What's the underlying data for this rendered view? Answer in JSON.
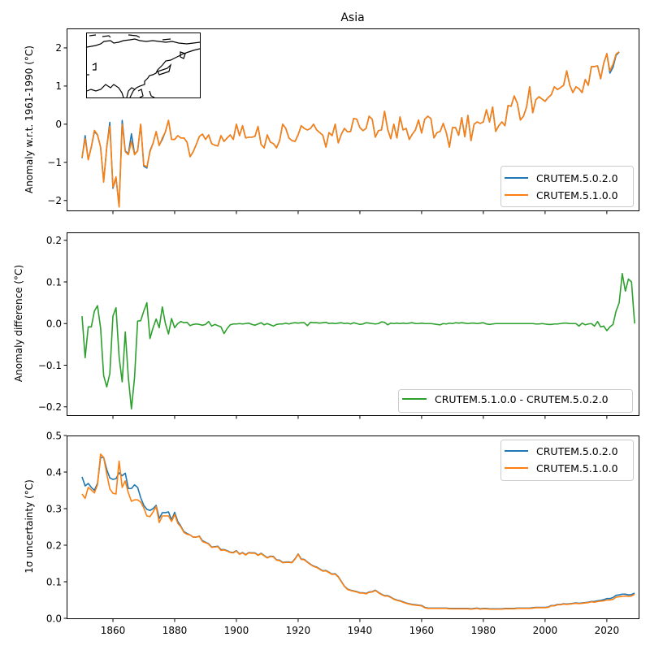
{
  "chart_data": [
    {
      "type": "line",
      "title": "Asia",
      "xlabel": "",
      "ylabel": "Anomaly w.r.t. 1961-1990 (°C)",
      "xlim": [
        1845,
        2030.3
      ],
      "ylim": [
        -2.26,
        2.51
      ],
      "xticks": [
        1860,
        1880,
        1900,
        1920,
        1940,
        1960,
        1980,
        2000,
        2020
      ],
      "xtick_labels_visible": false,
      "yticks": [
        -2,
        -1,
        0,
        1,
        2
      ],
      "ytick_labels": [
        "−2",
        "−1",
        "0",
        "1",
        "2"
      ],
      "grid": false,
      "legend": "lower-right",
      "inset": "map of Asia coastlines (top-left)",
      "x_start": 1850,
      "series": [
        {
          "name": "CRUTEM.5.0.2.0",
          "color": "#1f77b4",
          "values": [
            -0.89,
            -0.3,
            -0.93,
            -0.6,
            -0.19,
            -0.28,
            -0.6,
            -1.5,
            -0.6,
            0.05,
            -1.68,
            -1.4,
            -2.15,
            0.1,
            -0.7,
            -0.78,
            -0.25,
            -0.78,
            -0.7,
            0.0,
            -1.1,
            -1.15,
            -0.7,
            -0.5,
            -0.2,
            -0.55,
            -0.4,
            -0.2,
            0.1,
            -0.4,
            -0.4,
            -0.3,
            -0.36,
            -0.36,
            -0.47,
            -0.85,
            -0.72,
            -0.53,
            -0.32,
            -0.26,
            -0.4,
            -0.28,
            -0.51,
            -0.55,
            -0.57,
            -0.3,
            -0.45,
            -0.36,
            -0.28,
            -0.4,
            0.0,
            -0.3,
            -0.04,
            -0.36,
            -0.34,
            -0.34,
            -0.32,
            -0.06,
            -0.53,
            -0.62,
            -0.28,
            -0.47,
            -0.51,
            -0.62,
            -0.43,
            0.0,
            -0.11,
            -0.36,
            -0.43,
            -0.45,
            -0.28,
            -0.04,
            -0.11,
            -0.15,
            -0.11,
            0.0,
            -0.15,
            -0.22,
            -0.29,
            -0.6,
            -0.22,
            -0.3,
            0.0,
            -0.49,
            -0.26,
            -0.11,
            -0.2,
            -0.19,
            0.15,
            0.13,
            -0.09,
            -0.17,
            -0.11,
            0.21,
            0.13,
            -0.34,
            -0.17,
            -0.15,
            0.34,
            -0.13,
            -0.38,
            0.0,
            -0.36,
            0.19,
            -0.15,
            -0.11,
            -0.4,
            -0.26,
            -0.15,
            0.11,
            -0.23,
            0.13,
            0.21,
            0.15,
            -0.36,
            -0.22,
            -0.19,
            0.02,
            -0.22,
            -0.6,
            -0.09,
            -0.09,
            -0.29,
            0.17,
            -0.33,
            0.23,
            -0.43,
            0.0,
            0.06,
            0.02,
            0.06,
            0.38,
            0.06,
            0.45,
            -0.19,
            -0.04,
            0.06,
            -0.04,
            0.49,
            0.47,
            0.74,
            0.55,
            0.11,
            0.21,
            0.45,
            0.98,
            0.3,
            0.64,
            0.72,
            0.66,
            0.6,
            0.7,
            0.77,
            0.98,
            0.91,
            0.96,
            1.02,
            1.4,
            1.02,
            0.83,
            0.98,
            0.93,
            0.83,
            1.17,
            1.02,
            1.51,
            1.51,
            1.53,
            1.19,
            1.6,
            1.85,
            1.34,
            1.49,
            1.81,
            1.89
          ]
        },
        {
          "name": "CRUTEM.5.1.0.0",
          "color": "#ff7f0e",
          "values": [
            -0.87,
            -0.38,
            -0.93,
            -0.59,
            -0.16,
            -0.27,
            -0.6,
            -1.52,
            -0.6,
            -0.05,
            -1.65,
            -1.38,
            -2.17,
            0.0,
            -0.72,
            -0.8,
            -0.45,
            -0.8,
            -0.7,
            0.0,
            -1.07,
            -1.12,
            -0.73,
            -0.5,
            -0.19,
            -0.56,
            -0.36,
            -0.2,
            0.1,
            -0.4,
            -0.4,
            -0.3,
            -0.36,
            -0.36,
            -0.47,
            -0.85,
            -0.72,
            -0.53,
            -0.32,
            -0.26,
            -0.4,
            -0.28,
            -0.51,
            -0.55,
            -0.57,
            -0.3,
            -0.45,
            -0.36,
            -0.28,
            -0.4,
            0.0,
            -0.3,
            -0.04,
            -0.36,
            -0.34,
            -0.34,
            -0.32,
            -0.06,
            -0.53,
            -0.62,
            -0.28,
            -0.47,
            -0.51,
            -0.62,
            -0.43,
            0.0,
            -0.11,
            -0.36,
            -0.43,
            -0.45,
            -0.28,
            -0.04,
            -0.11,
            -0.15,
            -0.11,
            0.0,
            -0.15,
            -0.22,
            -0.29,
            -0.6,
            -0.22,
            -0.3,
            0.0,
            -0.49,
            -0.26,
            -0.11,
            -0.2,
            -0.19,
            0.15,
            0.13,
            -0.09,
            -0.17,
            -0.11,
            0.21,
            0.13,
            -0.34,
            -0.17,
            -0.15,
            0.34,
            -0.13,
            -0.38,
            0.0,
            -0.36,
            0.19,
            -0.15,
            -0.11,
            -0.4,
            -0.26,
            -0.15,
            0.11,
            -0.23,
            0.13,
            0.21,
            0.15,
            -0.36,
            -0.22,
            -0.19,
            0.02,
            -0.22,
            -0.6,
            -0.09,
            -0.09,
            -0.29,
            0.17,
            -0.33,
            0.23,
            -0.43,
            0.0,
            0.06,
            0.02,
            0.06,
            0.38,
            0.06,
            0.45,
            -0.19,
            -0.04,
            0.06,
            -0.04,
            0.49,
            0.47,
            0.74,
            0.55,
            0.11,
            0.21,
            0.45,
            0.98,
            0.3,
            0.64,
            0.72,
            0.66,
            0.6,
            0.7,
            0.77,
            0.98,
            0.91,
            0.96,
            1.02,
            1.4,
            1.02,
            0.83,
            0.98,
            0.93,
            0.83,
            1.17,
            1.02,
            1.51,
            1.51,
            1.53,
            1.19,
            1.6,
            1.85,
            1.4,
            1.57,
            1.84,
            1.9
          ]
        }
      ]
    },
    {
      "type": "line",
      "title": "",
      "xlabel": "",
      "ylabel": "Anomaly difference (°C)",
      "xlim": [
        1845,
        2030.3
      ],
      "ylim": [
        -0.22,
        0.219
      ],
      "xticks": [
        1860,
        1880,
        1900,
        1920,
        1940,
        1960,
        1980,
        2000,
        2020
      ],
      "xtick_labels_visible": false,
      "yticks": [
        -0.2,
        -0.1,
        0.0,
        0.1,
        0.2
      ],
      "ytick_labels": [
        "−0.2",
        "−0.1",
        "0.0",
        "0.1",
        "0.2"
      ],
      "grid": false,
      "legend": "lower-right",
      "x_start": 1850,
      "series": [
        {
          "name": "CRUTEM.5.1.0.0 - CRUTEM.5.0.2.0",
          "color": "#2ca02c",
          "values": [
            0.018,
            -0.082,
            -0.008,
            -0.008,
            0.03,
            0.043,
            -0.01,
            -0.125,
            -0.152,
            -0.12,
            0.018,
            0.038,
            -0.08,
            -0.14,
            -0.02,
            -0.13,
            -0.205,
            -0.13,
            0.006,
            0.007,
            0.03,
            0.05,
            -0.036,
            -0.01,
            0.011,
            -0.01,
            0.04,
            0.0,
            -0.025,
            0.012,
            -0.01,
            0.0,
            0.005,
            0.002,
            0.003,
            -0.005,
            -0.002,
            -0.001,
            -0.002,
            -0.004,
            -0.002,
            0.005,
            -0.006,
            -0.002,
            -0.005,
            -0.008,
            -0.024,
            -0.012,
            -0.003,
            -0.001,
            -0.001,
            0.0,
            -0.001,
            0.0,
            0.001,
            -0.002,
            -0.004,
            -0.001,
            0.002,
            -0.003,
            0.0,
            -0.003,
            -0.006,
            -0.002,
            -0.001,
            -0.001,
            0.001,
            -0.001,
            0.001,
            0.002,
            0.001,
            0.002,
            0.002,
            -0.005,
            0.003,
            0.002,
            0.002,
            0.001,
            0.002,
            0.003,
            0.0,
            0.001,
            0.0,
            0.001,
            0.002,
            0.0,
            0.001,
            -0.001,
            0.002,
            0.0,
            -0.002,
            -0.001,
            0.002,
            0.001,
            0.0,
            -0.001,
            0.0,
            0.004,
            0.003,
            -0.003,
            0.001,
            0.0,
            0.001,
            0.0,
            0.001,
            0.0,
            0.001,
            0.002,
            0.0,
            0.0,
            0.001,
            0.0,
            0.0,
            0.0,
            -0.001,
            -0.002,
            -0.003,
            0.0,
            -0.001,
            0.001,
            0.0,
            0.002,
            0.001,
            0.002,
            0.001,
            0.0,
            0.001,
            0.001,
            0.0,
            0.001,
            0.002,
            -0.001,
            -0.002,
            -0.001,
            0.0,
            0.0,
            0.0,
            0.0,
            0.0,
            0.0,
            0.0,
            0.0,
            0.0,
            0.0,
            0.0,
            0.0,
            0.0,
            -0.001,
            -0.001,
            0.0,
            -0.001,
            -0.002,
            -0.002,
            -0.001,
            -0.001,
            0.0,
            0.001,
            0.001,
            0.0,
            0.0,
            0.0,
            -0.006,
            0.001,
            -0.003,
            -0.001,
            0.0,
            -0.006,
            0.005,
            -0.008,
            -0.006,
            -0.017,
            -0.008,
            -0.002,
            0.03,
            0.05,
            0.12,
            0.078,
            0.107,
            0.1,
            0.0
          ]
        }
      ]
    },
    {
      "type": "line",
      "title": "",
      "xlabel": "",
      "ylabel": "1σ uncertainty (°C)",
      "xlim": [
        1845,
        2030.3
      ],
      "ylim": [
        0.0,
        0.5
      ],
      "xticks": [
        1860,
        1880,
        1900,
        1920,
        1940,
        1960,
        1980,
        2000,
        2020
      ],
      "xtick_labels": [
        "1860",
        "1880",
        "1900",
        "1920",
        "1940",
        "1960",
        "1980",
        "2000",
        "2020"
      ],
      "yticks": [
        0.0,
        0.1,
        0.2,
        0.3,
        0.4,
        0.5
      ],
      "ytick_labels": [
        "0.0",
        "0.1",
        "0.2",
        "0.3",
        "0.4",
        "0.5"
      ],
      "grid": false,
      "legend": "upper-right",
      "x_start": 1850,
      "series": [
        {
          "name": "CRUTEM.5.0.2.0",
          "color": "#1f77b4",
          "values": [
            0.387,
            0.362,
            0.369,
            0.358,
            0.35,
            0.369,
            0.44,
            0.44,
            0.407,
            0.384,
            0.38,
            0.382,
            0.398,
            0.39,
            0.397,
            0.355,
            0.355,
            0.365,
            0.358,
            0.33,
            0.309,
            0.298,
            0.295,
            0.3,
            0.309,
            0.273,
            0.289,
            0.289,
            0.291,
            0.269,
            0.29,
            0.265,
            0.252,
            0.237,
            0.232,
            0.228,
            0.222,
            0.222,
            0.225,
            0.212,
            0.208,
            0.204,
            0.195,
            0.196,
            0.197,
            0.188,
            0.188,
            0.185,
            0.181,
            0.18,
            0.185,
            0.176,
            0.18,
            0.174,
            0.18,
            0.179,
            0.179,
            0.173,
            0.178,
            0.172,
            0.166,
            0.17,
            0.169,
            0.16,
            0.159,
            0.153,
            0.154,
            0.154,
            0.153,
            0.163,
            0.176,
            0.162,
            0.161,
            0.154,
            0.148,
            0.143,
            0.14,
            0.135,
            0.13,
            0.131,
            0.126,
            0.121,
            0.122,
            0.114,
            0.101,
            0.088,
            0.08,
            0.077,
            0.075,
            0.073,
            0.07,
            0.07,
            0.068,
            0.072,
            0.073,
            0.077,
            0.071,
            0.066,
            0.062,
            0.062,
            0.058,
            0.053,
            0.05,
            0.048,
            0.045,
            0.042,
            0.04,
            0.038,
            0.037,
            0.036,
            0.035,
            0.03,
            0.028,
            0.028,
            0.028,
            0.028,
            0.028,
            0.028,
            0.028,
            0.027,
            0.027,
            0.027,
            0.027,
            0.027,
            0.027,
            0.027,
            0.026,
            0.027,
            0.028,
            0.026,
            0.027,
            0.027,
            0.026,
            0.026,
            0.026,
            0.026,
            0.026,
            0.027,
            0.027,
            0.027,
            0.027,
            0.028,
            0.028,
            0.028,
            0.028,
            0.028,
            0.029,
            0.03,
            0.03,
            0.03,
            0.03,
            0.031,
            0.035,
            0.035,
            0.038,
            0.038,
            0.04,
            0.039,
            0.04,
            0.041,
            0.042,
            0.041,
            0.042,
            0.043,
            0.044,
            0.046,
            0.046,
            0.048,
            0.049,
            0.051,
            0.054,
            0.054,
            0.057,
            0.063,
            0.064,
            0.066,
            0.066,
            0.064,
            0.065,
            0.069
          ]
        },
        {
          "name": "CRUTEM.5.1.0.0",
          "color": "#ff7f0e",
          "values": [
            0.34,
            0.328,
            0.358,
            0.351,
            0.343,
            0.365,
            0.449,
            0.44,
            0.395,
            0.354,
            0.342,
            0.34,
            0.43,
            0.358,
            0.376,
            0.343,
            0.32,
            0.324,
            0.324,
            0.318,
            0.302,
            0.28,
            0.278,
            0.291,
            0.306,
            0.262,
            0.28,
            0.28,
            0.28,
            0.265,
            0.284,
            0.26,
            0.25,
            0.235,
            0.23,
            0.228,
            0.222,
            0.222,
            0.224,
            0.21,
            0.207,
            0.203,
            0.194,
            0.195,
            0.196,
            0.186,
            0.187,
            0.184,
            0.18,
            0.179,
            0.184,
            0.175,
            0.179,
            0.173,
            0.179,
            0.178,
            0.178,
            0.172,
            0.177,
            0.171,
            0.165,
            0.169,
            0.168,
            0.159,
            0.158,
            0.152,
            0.153,
            0.153,
            0.152,
            0.162,
            0.175,
            0.161,
            0.16,
            0.153,
            0.147,
            0.142,
            0.139,
            0.134,
            0.129,
            0.13,
            0.125,
            0.12,
            0.121,
            0.113,
            0.1,
            0.087,
            0.079,
            0.076,
            0.074,
            0.072,
            0.069,
            0.069,
            0.067,
            0.071,
            0.072,
            0.076,
            0.07,
            0.065,
            0.061,
            0.061,
            0.057,
            0.052,
            0.049,
            0.047,
            0.044,
            0.041,
            0.039,
            0.037,
            0.036,
            0.035,
            0.034,
            0.029,
            0.027,
            0.027,
            0.027,
            0.027,
            0.027,
            0.027,
            0.027,
            0.026,
            0.026,
            0.026,
            0.026,
            0.026,
            0.026,
            0.026,
            0.025,
            0.026,
            0.027,
            0.025,
            0.026,
            0.026,
            0.025,
            0.025,
            0.025,
            0.025,
            0.025,
            0.026,
            0.026,
            0.026,
            0.026,
            0.027,
            0.027,
            0.027,
            0.027,
            0.027,
            0.028,
            0.029,
            0.029,
            0.029,
            0.029,
            0.03,
            0.034,
            0.034,
            0.037,
            0.037,
            0.039,
            0.038,
            0.039,
            0.04,
            0.041,
            0.04,
            0.041,
            0.042,
            0.043,
            0.045,
            0.044,
            0.046,
            0.047,
            0.048,
            0.05,
            0.05,
            0.052,
            0.058,
            0.059,
            0.06,
            0.061,
            0.06,
            0.061,
            0.066
          ]
        }
      ]
    }
  ]
}
